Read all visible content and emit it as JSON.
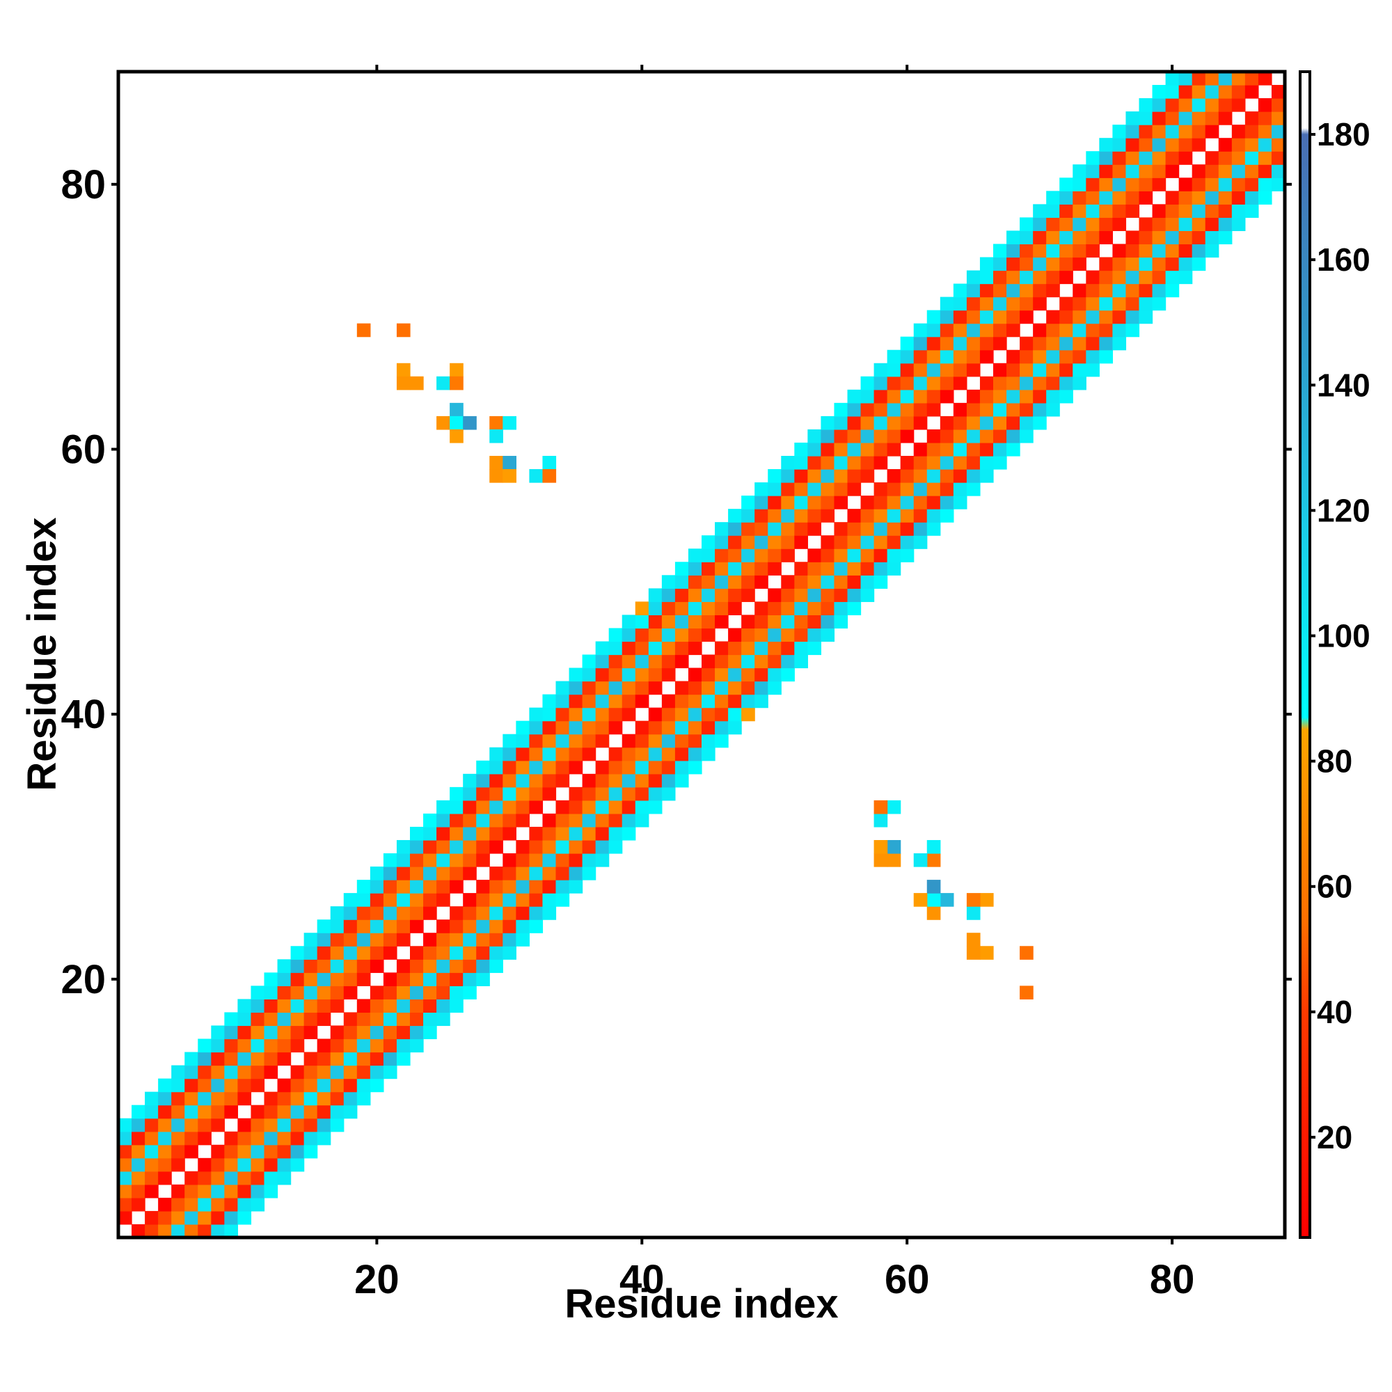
{
  "chart_data": {
    "type": "heatmap",
    "title": "",
    "xlabel": "Residue index",
    "ylabel": "Residue index",
    "xlim": [
      0.5,
      88.5
    ],
    "ylim": [
      0.5,
      88.5
    ],
    "x_ticks": [
      20,
      40,
      60,
      80
    ],
    "y_ticks": [
      20,
      40,
      60,
      80
    ],
    "grid": false,
    "colorbar": {
      "range": [
        4,
        190
      ],
      "ticks": [
        20,
        40,
        60,
        80,
        100,
        120,
        140,
        160,
        180
      ],
      "stops": [
        {
          "value": 4,
          "color": "#ff0000"
        },
        {
          "value": 40,
          "color": "#ff3a00"
        },
        {
          "value": 55,
          "color": "#ff7000"
        },
        {
          "value": 85,
          "color": "#ffa500"
        },
        {
          "value": 87,
          "color": "#00ffff"
        },
        {
          "value": 120,
          "color": "#1ec8e6"
        },
        {
          "value": 150,
          "color": "#3296c8"
        },
        {
          "value": 180,
          "color": "#4a6eb4"
        },
        {
          "value": 181,
          "color": "#ffffff"
        },
        {
          "value": 190,
          "color": "#ffffff"
        }
      ]
    },
    "description": "Symmetric residue contact map: nonzero cells within |i-j|<=8 near the diagonal, plus off-diagonal contacts between residues 19-33 and 58-69.",
    "off_diagonal_cells": [
      {
        "x": 19,
        "y": 69,
        "value": 55
      },
      {
        "x": 22,
        "y": 69,
        "value": 55
      },
      {
        "x": 22,
        "y": 66,
        "value": 80
      },
      {
        "x": 22,
        "y": 65,
        "value": 75
      },
      {
        "x": 23,
        "y": 65,
        "value": 75
      },
      {
        "x": 25,
        "y": 65,
        "value": 100
      },
      {
        "x": 26,
        "y": 66,
        "value": 80
      },
      {
        "x": 26,
        "y": 65,
        "value": 60
      },
      {
        "x": 26,
        "y": 63,
        "value": 130
      },
      {
        "x": 25,
        "y": 62,
        "value": 75
      },
      {
        "x": 26,
        "y": 62,
        "value": 90
      },
      {
        "x": 27,
        "y": 62,
        "value": 150
      },
      {
        "x": 26,
        "y": 61,
        "value": 80
      },
      {
        "x": 29,
        "y": 62,
        "value": 60
      },
      {
        "x": 30,
        "y": 62,
        "value": 95
      },
      {
        "x": 29,
        "y": 61,
        "value": 100
      },
      {
        "x": 29,
        "y": 59,
        "value": 75
      },
      {
        "x": 30,
        "y": 59,
        "value": 140
      },
      {
        "x": 29,
        "y": 58,
        "value": 75
      },
      {
        "x": 30,
        "y": 58,
        "value": 80
      },
      {
        "x": 32,
        "y": 58,
        "value": 100
      },
      {
        "x": 33,
        "y": 59,
        "value": 95
      },
      {
        "x": 33,
        "y": 58,
        "value": 55
      },
      {
        "x": 40,
        "y": 48,
        "value": 80
      },
      {
        "x": 48,
        "y": 40,
        "value": 80
      },
      {
        "x": 69,
        "y": 19,
        "value": 55
      },
      {
        "x": 69,
        "y": 22,
        "value": 55
      },
      {
        "x": 66,
        "y": 22,
        "value": 80
      },
      {
        "x": 65,
        "y": 22,
        "value": 75
      },
      {
        "x": 65,
        "y": 23,
        "value": 75
      },
      {
        "x": 65,
        "y": 25,
        "value": 100
      },
      {
        "x": 66,
        "y": 26,
        "value": 80
      },
      {
        "x": 65,
        "y": 26,
        "value": 60
      },
      {
        "x": 63,
        "y": 26,
        "value": 130
      },
      {
        "x": 62,
        "y": 25,
        "value": 75
      },
      {
        "x": 62,
        "y": 26,
        "value": 90
      },
      {
        "x": 62,
        "y": 27,
        "value": 150
      },
      {
        "x": 61,
        "y": 26,
        "value": 80
      },
      {
        "x": 62,
        "y": 29,
        "value": 60
      },
      {
        "x": 62,
        "y": 30,
        "value": 95
      },
      {
        "x": 61,
        "y": 29,
        "value": 100
      },
      {
        "x": 59,
        "y": 29,
        "value": 75
      },
      {
        "x": 59,
        "y": 30,
        "value": 140
      },
      {
        "x": 58,
        "y": 29,
        "value": 75
      },
      {
        "x": 58,
        "y": 30,
        "value": 80
      },
      {
        "x": 58,
        "y": 32,
        "value": 100
      },
      {
        "x": 59,
        "y": 33,
        "value": 95
      },
      {
        "x": 58,
        "y": 33,
        "value": 55
      }
    ]
  }
}
